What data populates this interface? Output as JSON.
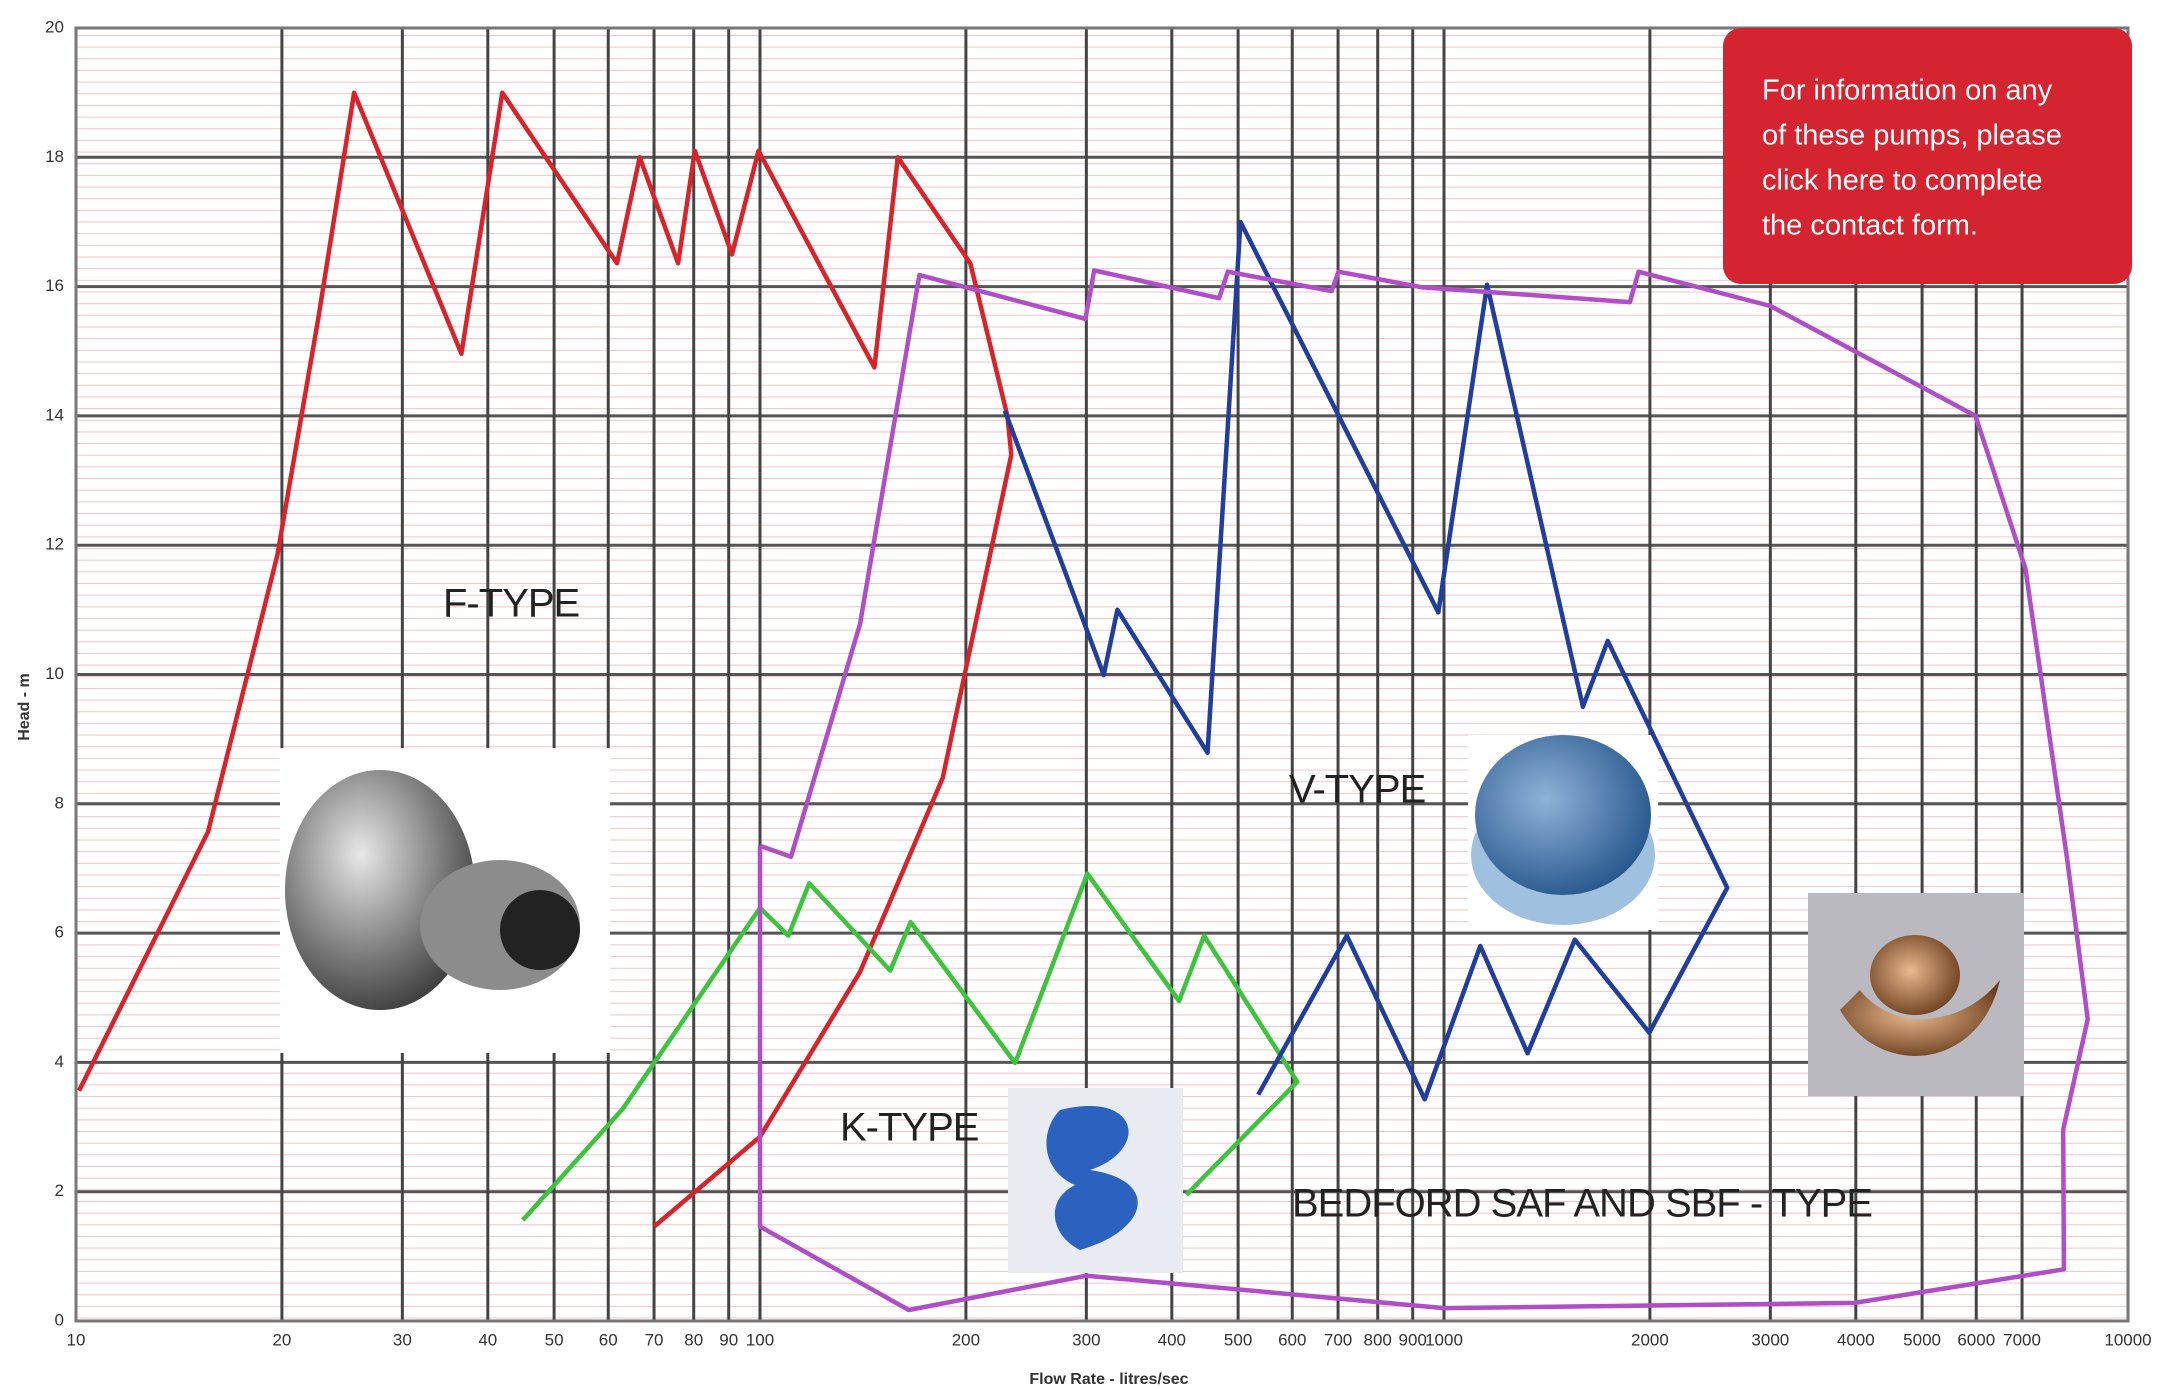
{
  "chart_data": {
    "type": "line",
    "xlabel": "Flow Rate - litres/sec",
    "ylabel": "Head - m",
    "log_x": true,
    "grid": true,
    "xlim": [
      10,
      10000
    ],
    "ylim": [
      0,
      20
    ],
    "xticks": [
      10,
      20,
      30,
      40,
      50,
      60,
      70,
      80,
      90,
      100,
      200,
      300,
      400,
      500,
      600,
      700,
      800,
      900,
      1000,
      2000,
      3000,
      4000,
      5000,
      6000,
      7000,
      10000
    ],
    "yticks": [
      0,
      2,
      4,
      6,
      8,
      10,
      12,
      14,
      16,
      18,
      20
    ],
    "series": [
      {
        "name": "F-TYPE",
        "color": "#d8232a",
        "x": [
          10.1,
          15.6,
          19.7,
          22.6,
          25.5,
          36.6,
          42,
          61.8,
          66.7,
          75.9,
          80.3,
          91,
          99.5,
          147,
          159,
          203,
          230,
          233,
          185,
          140,
          100,
          70
        ],
        "values": [
          3.56,
          7.57,
          11.85,
          15.5,
          19.0,
          14.96,
          19.0,
          16.36,
          18.0,
          16.36,
          18.1,
          16.5,
          18.1,
          14.75,
          18.0,
          16.36,
          14.0,
          13.4,
          8.4,
          5.4,
          2.85,
          1.46
        ]
      },
      {
        "name": "K-TYPE",
        "color": "#3cc43c",
        "x": [
          45,
          63,
          100,
          110,
          118,
          155,
          166,
          236,
          301,
          410,
          446,
          610,
          420
        ],
        "values": [
          1.56,
          3.28,
          6.39,
          5.96,
          6.77,
          5.42,
          6.17,
          3.99,
          6.92,
          4.95,
          5.96,
          3.7,
          1.95
        ]
      },
      {
        "name": "V-TYPE",
        "color": "#1f3ea0",
        "x": [
          228,
          318,
          333,
          451,
          504,
          981,
          1156,
          1596,
          1735,
          2594,
          1996,
          1553,
          1325,
          1130,
          937,
          721,
          535
        ],
        "values": [
          14.08,
          9.99,
          11.0,
          8.79,
          17.0,
          10.96,
          16.03,
          9.5,
          10.52,
          6.7,
          4.46,
          5.9,
          4.14,
          5.8,
          3.43,
          5.96,
          3.5
        ]
      },
      {
        "name": "BEDFORD SAF AND SBF - TYPE",
        "color": "#b04ec8",
        "x": [
          100,
          111,
          140,
          171,
          299,
          308,
          469,
          483,
          685,
          701,
          927,
          1870,
          1925,
          3000,
          5984,
          7080,
          8150,
          8730,
          8040,
          8060,
          3981,
          1000,
          300,
          165,
          100,
          100
        ],
        "values": [
          7.35,
          7.18,
          10.78,
          16.18,
          15.5,
          16.25,
          15.82,
          16.23,
          15.93,
          16.23,
          15.99,
          15.76,
          16.23,
          15.7,
          14.0,
          11.64,
          7.14,
          4.67,
          2.96,
          0.8,
          0.28,
          0.2,
          0.7,
          0.17,
          1.46,
          7.35
        ]
      }
    ],
    "callout": [
      "For information on any",
      "of these pumps, please",
      "click here to complete",
      "the contact form."
    ]
  }
}
